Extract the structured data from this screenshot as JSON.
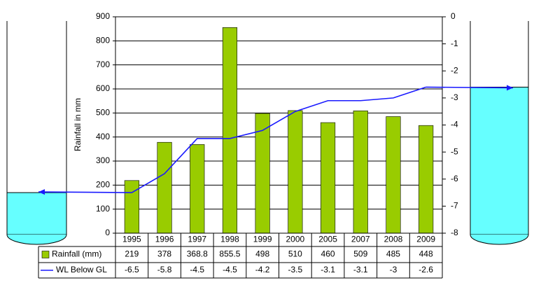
{
  "chart_data": {
    "type": "bar-line-table",
    "categories": [
      "1995",
      "1996",
      "1997",
      "1998",
      "1999",
      "2000",
      "2005",
      "2007",
      "2008",
      "2009"
    ],
    "y_label": "Rainfall in mm",
    "series": [
      {
        "name": "Rainfall (mm)",
        "type": "bar",
        "color": "#99cc00",
        "values": [
          219,
          378,
          368.8,
          855.5,
          498,
          510,
          460,
          509,
          485,
          448
        ]
      },
      {
        "name": "WL Below GL",
        "type": "line",
        "axis": "y2",
        "color": "#1a1aff",
        "values": [
          -6.5,
          -5.8,
          -4.5,
          -4.5,
          -4.2,
          -3.5,
          -3.1,
          -3.1,
          -3,
          -2.6
        ]
      }
    ],
    "ylim": [
      0,
      900
    ],
    "yticks": [
      0,
      100,
      200,
      300,
      400,
      500,
      600,
      700,
      800,
      900
    ],
    "y2lim": [
      0,
      -8
    ],
    "y2ticks": [
      0,
      -1,
      -2,
      -3,
      -4,
      -5,
      -6,
      -7,
      -8
    ],
    "grid": true,
    "water_color": "#66ffff"
  }
}
